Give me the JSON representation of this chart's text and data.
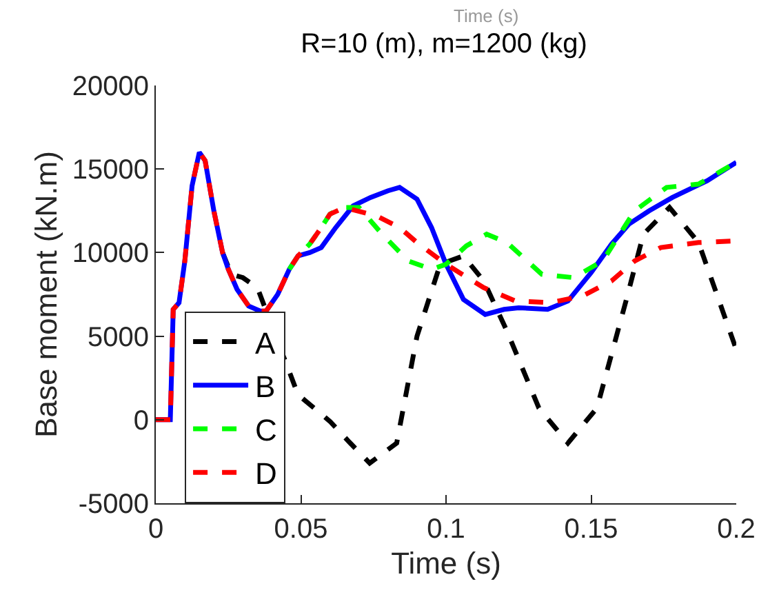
{
  "chart_data": {
    "type": "line",
    "title": "R=10 (m), m=1200 (kg)",
    "xlabel": "Time (s)",
    "ylabel": "Base moment (kN.m)",
    "annotations": [
      "Time (s)"
    ],
    "xlim": [
      0,
      0.2
    ],
    "xticks": [
      0,
      0.05,
      0.1,
      0.15,
      0.2
    ],
    "ylim": [
      -5000,
      20000
    ],
    "yticks": [
      -5000,
      0,
      5000,
      10000,
      15000,
      20000
    ],
    "legend": "bottom left",
    "marker": "none",
    "series": [
      {
        "name": "A",
        "color": "#000000",
        "line_style": "dashed",
        "x": [
          0.023,
          0.026,
          0.03,
          0.035,
          0.049,
          0.06,
          0.067,
          0.0737,
          0.083,
          0.09,
          0.098,
          0.106,
          0.113,
          0.121,
          0.132,
          0.142,
          0.152,
          0.162,
          0.168,
          0.177,
          0.187,
          0.2
        ],
        "values": [
          10000,
          8700,
          8500,
          7900,
          1500,
          -100,
          -1400,
          -2600,
          -1400,
          5000,
          9300,
          9800,
          8300,
          5300,
          700,
          -1400,
          700,
          7100,
          11100,
          12700,
          10600,
          4200
        ]
      },
      {
        "name": "B",
        "color": "#0000ff",
        "line_style": "solid",
        "x": [
          0,
          0.005,
          0.006,
          0.008,
          0.01,
          0.0125,
          0.015,
          0.017,
          0.02,
          0.023,
          0.025,
          0.028,
          0.032,
          0.036,
          0.038,
          0.042,
          0.046,
          0.049,
          0.053,
          0.057,
          0.062,
          0.068,
          0.074,
          0.08,
          0.084,
          0.09,
          0.095,
          0.1,
          0.106,
          0.1135,
          0.12,
          0.125,
          0.135,
          0.142,
          0.15,
          0.157,
          0.163,
          0.17,
          0.178,
          0.19,
          0.2
        ],
        "values": [
          0,
          0,
          6600,
          7000,
          9500,
          14000,
          16000,
          15500,
          12500,
          10000,
          9000,
          7800,
          6800,
          6500,
          6500,
          7500,
          9000,
          9800,
          10000,
          10300,
          11500,
          12800,
          13300,
          13700,
          13900,
          13200,
          11500,
          9300,
          7200,
          6300,
          6600,
          6700,
          6600,
          7100,
          8800,
          10500,
          11700,
          12500,
          13300,
          14300,
          15400
        ]
      },
      {
        "name": "C",
        "color": "#00ff00",
        "line_style": "dashed",
        "x": [
          0.046,
          0.049,
          0.053,
          0.057,
          0.06,
          0.064,
          0.07,
          0.078,
          0.087,
          0.095,
          0.1,
          0.107,
          0.114,
          0.121,
          0.133,
          0.144,
          0.154,
          0.165,
          0.176,
          0.187,
          0.2
        ],
        "values": [
          9000,
          9800,
          10500,
          11500,
          12300,
          12700,
          12700,
          11100,
          9500,
          9000,
          9300,
          10400,
          11100,
          10600,
          8700,
          8500,
          9500,
          12500,
          13900,
          14100,
          15400
        ]
      },
      {
        "name": "D",
        "color": "#ff0000",
        "line_style": "dashed",
        "x": [
          0,
          0.005,
          0.006,
          0.008,
          0.01,
          0.0125,
          0.015,
          0.017,
          0.02,
          0.023,
          0.025,
          0.028,
          0.032,
          0.036,
          0.038,
          0.042,
          0.046,
          0.049,
          0.053,
          0.057,
          0.06,
          0.065,
          0.076,
          0.084,
          0.09,
          0.1,
          0.113,
          0.124,
          0.136,
          0.147,
          0.157,
          0.165,
          0.174,
          0.187,
          0.2
        ],
        "values": [
          0,
          0,
          6600,
          7000,
          9500,
          14000,
          16000,
          15500,
          12500,
          10000,
          9000,
          7800,
          6800,
          6500,
          6500,
          7500,
          9000,
          9800,
          10500,
          11500,
          12300,
          12700,
          12200,
          11500,
          10600,
          9300,
          7900,
          7100,
          7000,
          7400,
          8300,
          9500,
          10300,
          10600,
          10700
        ]
      }
    ]
  }
}
